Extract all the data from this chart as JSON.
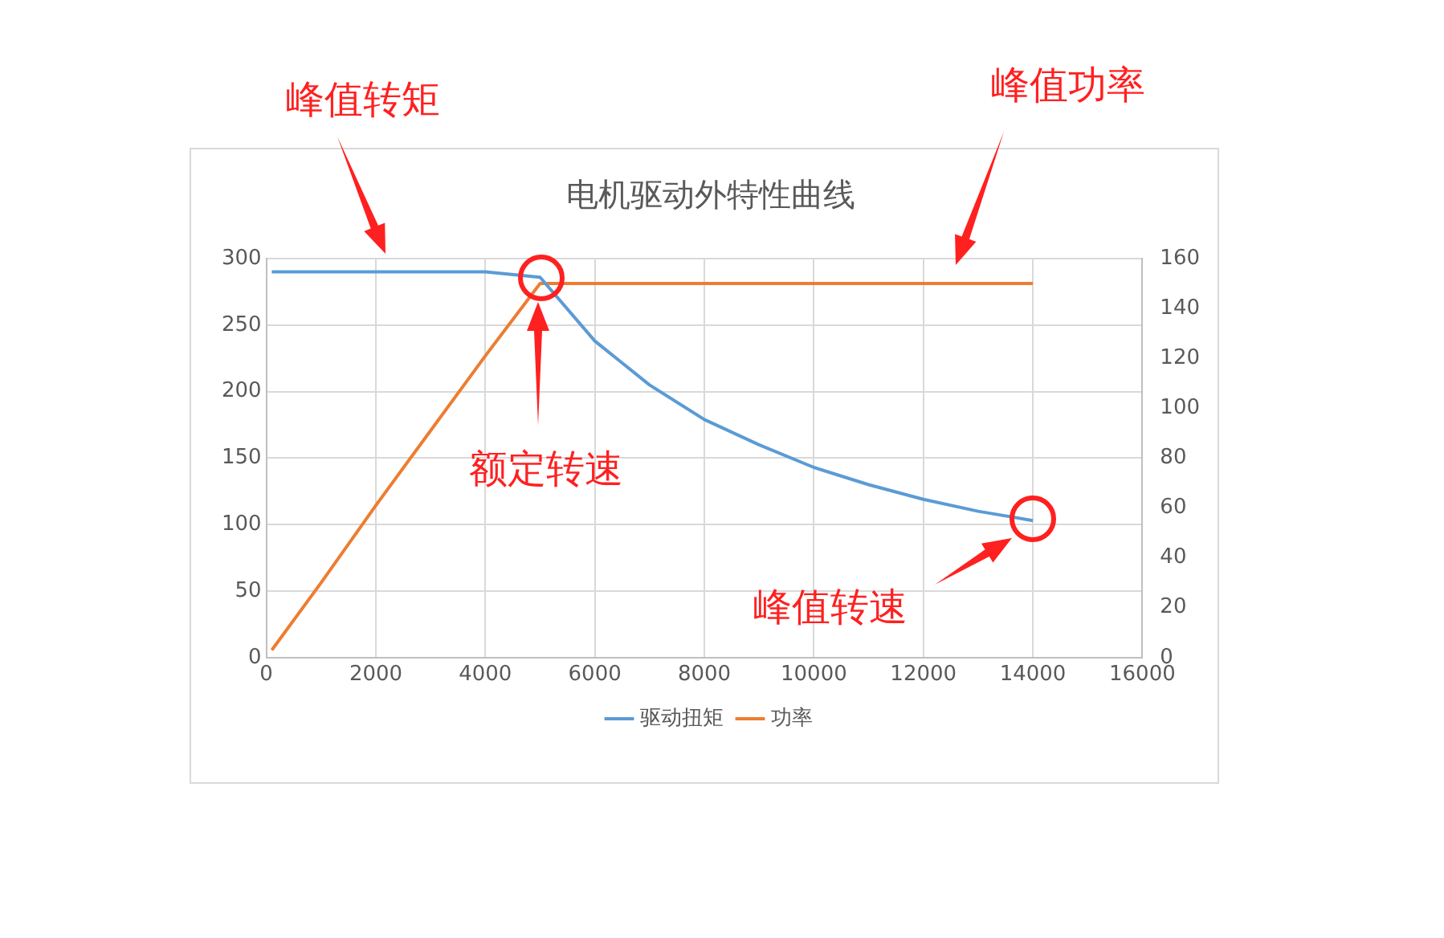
{
  "chart_data": {
    "type": "line",
    "title": "电机驱动外特性曲线",
    "x": [
      100,
      1000,
      2000,
      3000,
      4000,
      5000,
      6000,
      7000,
      8000,
      9000,
      10000,
      11000,
      12000,
      13000,
      14000
    ],
    "series": [
      {
        "name": "驱动扭矩",
        "color": "#5b9bd5",
        "values": [
          290,
          290,
          290,
          290,
          290,
          286,
          238,
          205,
          179,
          160,
          143,
          130,
          119,
          110,
          103
        ]
      },
      {
        "name": "功率",
        "color": "#ed7d31",
        "axis": "y2",
        "values": [
          3,
          30,
          61,
          91,
          121,
          150,
          150,
          150,
          150,
          150,
          150,
          150,
          150,
          150,
          150
        ]
      }
    ],
    "xlim": [
      0,
      16000
    ],
    "xticks": [
      0,
      2000,
      4000,
      6000,
      8000,
      10000,
      12000,
      14000,
      16000
    ],
    "ylim": [
      0,
      300
    ],
    "yticks": [
      0,
      50,
      100,
      150,
      200,
      250,
      300
    ],
    "y2lim": [
      0,
      160
    ],
    "y2ticks": [
      0,
      20,
      40,
      60,
      80,
      100,
      120,
      140,
      160
    ],
    "grid": true,
    "legend": "bottom",
    "marker": "none",
    "line_style": "solid",
    "annotations": [
      "峰值转矩",
      "峰值功率",
      "额定转速",
      "峰值转速"
    ]
  }
}
